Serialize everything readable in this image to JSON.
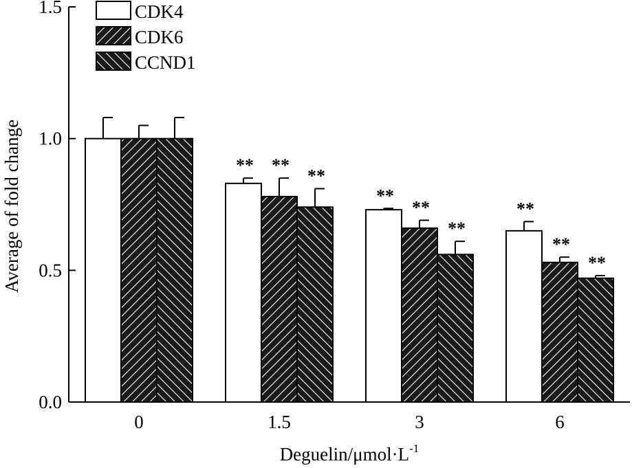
{
  "chart_data": {
    "type": "bar",
    "title": "",
    "xlabel": "Deguelin/μmol·L",
    "xlabel_superscript": "-1",
    "ylabel": "Average of fold change",
    "ylim": [
      0,
      1.5
    ],
    "yticks": [
      0.0,
      0.5,
      1.0,
      1.5
    ],
    "ytick_labels": [
      "0.0",
      "0.5",
      "1.0",
      "1.5"
    ],
    "categories": [
      "0",
      "1.5",
      "3",
      "6"
    ],
    "series": [
      {
        "name": "CDK4",
        "pattern": "white",
        "values": [
          1.0,
          0.83,
          0.73,
          0.65
        ],
        "errors": [
          0.08,
          0.02,
          0.005,
          0.035
        ],
        "significance": [
          "",
          "**",
          "**",
          "**"
        ]
      },
      {
        "name": "CDK6",
        "pattern": "hatch-right",
        "values": [
          1.0,
          0.78,
          0.66,
          0.53
        ],
        "errors": [
          0.05,
          0.07,
          0.03,
          0.02
        ],
        "significance": [
          "",
          "**",
          "**",
          "**"
        ]
      },
      {
        "name": "CCND1",
        "pattern": "hatch-left",
        "values": [
          1.0,
          0.74,
          0.56,
          0.47
        ],
        "errors": [
          0.08,
          0.07,
          0.05,
          0.01
        ],
        "significance": [
          "",
          "**",
          "**",
          "**"
        ]
      }
    ],
    "legend_position": "top-left"
  }
}
